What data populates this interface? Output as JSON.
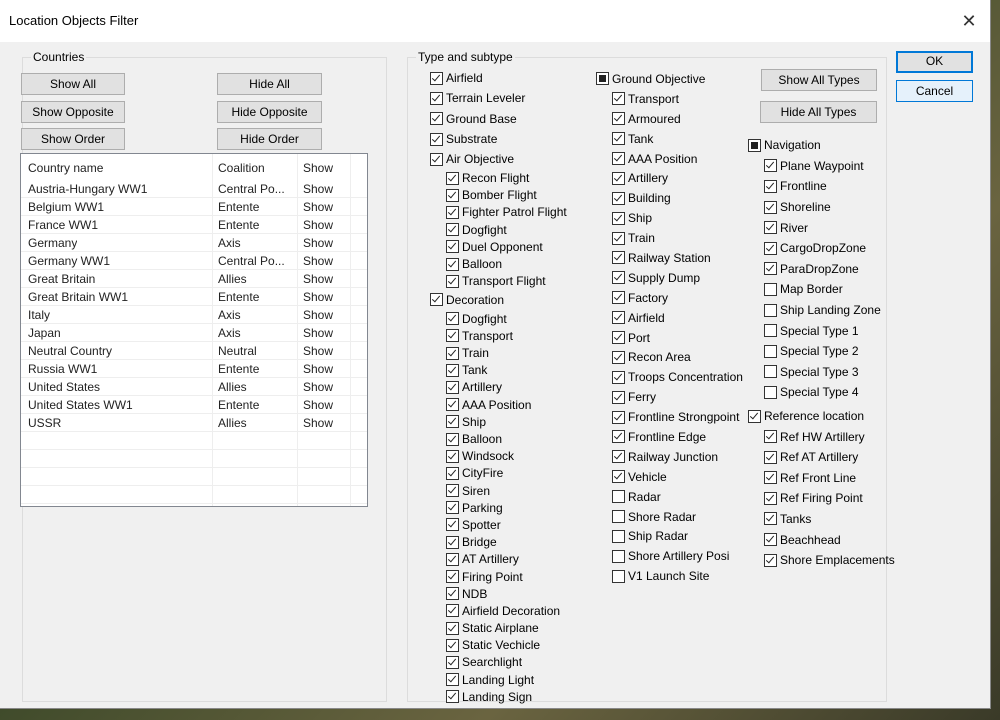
{
  "window": {
    "title": "Location Objects Filter",
    "close_icon": "close-icon"
  },
  "countries": {
    "label": "Countries",
    "buttons": {
      "show_all": "Show All",
      "hide_all": "Hide All",
      "show_opposite": "Show Opposite",
      "hide_opposite": "Hide Opposite",
      "show_order": "Show Order",
      "hide_order": "Hide Order"
    },
    "columns": [
      "Country name",
      "Coalition",
      "Show"
    ],
    "rows": [
      [
        "Austria-Hungary WW1",
        "Central Po...",
        "Show"
      ],
      [
        "Belgium WW1",
        "Entente",
        "Show"
      ],
      [
        "France WW1",
        "Entente",
        "Show"
      ],
      [
        "Germany",
        "Axis",
        "Show"
      ],
      [
        "Germany WW1",
        "Central Po...",
        "Show"
      ],
      [
        "Great Britain",
        "Allies",
        "Show"
      ],
      [
        "Great Britain WW1",
        "Entente",
        "Show"
      ],
      [
        "Italy",
        "Axis",
        "Show"
      ],
      [
        "Japan",
        "Axis",
        "Show"
      ],
      [
        "Neutral Country",
        "Neutral",
        "Show"
      ],
      [
        "Russia WW1",
        "Entente",
        "Show"
      ],
      [
        "United States",
        "Allies",
        "Show"
      ],
      [
        "United States WW1",
        "Entente",
        "Show"
      ],
      [
        "USSR",
        "Allies",
        "Show"
      ]
    ]
  },
  "types": {
    "label": "Type and subtype",
    "show_all_types": "Show All Types",
    "hide_all_types": "Hide All Types",
    "columns": [
      [
        {
          "label": "Airfield",
          "state": "checked",
          "level": 0
        },
        {
          "label": "Terrain Leveler",
          "state": "checked",
          "level": 0
        },
        {
          "label": "Ground Base",
          "state": "checked",
          "level": 0
        },
        {
          "label": "Substrate",
          "state": "checked",
          "level": 0
        },
        {
          "label": "Air Objective",
          "state": "checked",
          "level": 0
        },
        {
          "label": "Recon Flight",
          "state": "checked",
          "level": 1
        },
        {
          "label": "Bomber Flight",
          "state": "checked",
          "level": 1
        },
        {
          "label": "Fighter Patrol Flight",
          "state": "checked",
          "level": 1
        },
        {
          "label": "Dogfight",
          "state": "checked",
          "level": 1
        },
        {
          "label": "Duel Opponent",
          "state": "checked",
          "level": 1
        },
        {
          "label": "Balloon",
          "state": "checked",
          "level": 1
        },
        {
          "label": "Transport Flight",
          "state": "checked",
          "level": 1
        },
        {
          "label": "Decoration",
          "state": "checked",
          "level": 0
        },
        {
          "label": "Dogfight",
          "state": "checked",
          "level": 1
        },
        {
          "label": "Transport",
          "state": "checked",
          "level": 1
        },
        {
          "label": "Train",
          "state": "checked",
          "level": 1
        },
        {
          "label": "Tank",
          "state": "checked",
          "level": 1
        },
        {
          "label": "Artillery",
          "state": "checked",
          "level": 1
        },
        {
          "label": "AAA Position",
          "state": "checked",
          "level": 1
        },
        {
          "label": "Ship",
          "state": "checked",
          "level": 1
        },
        {
          "label": "Balloon",
          "state": "checked",
          "level": 1
        },
        {
          "label": "Windsock",
          "state": "checked",
          "level": 1
        },
        {
          "label": "CityFire",
          "state": "checked",
          "level": 1
        },
        {
          "label": "Siren",
          "state": "checked",
          "level": 1
        },
        {
          "label": "Parking",
          "state": "checked",
          "level": 1
        },
        {
          "label": "Spotter",
          "state": "checked",
          "level": 1
        },
        {
          "label": "Bridge",
          "state": "checked",
          "level": 1
        },
        {
          "label": "AT Artillery",
          "state": "checked",
          "level": 1
        },
        {
          "label": "Firing Point",
          "state": "checked",
          "level": 1
        },
        {
          "label": "NDB",
          "state": "checked",
          "level": 1
        },
        {
          "label": "Airfield Decoration",
          "state": "checked",
          "level": 1
        },
        {
          "label": "Static Airplane",
          "state": "checked",
          "level": 1
        },
        {
          "label": "Static Vechicle",
          "state": "checked",
          "level": 1
        },
        {
          "label": "Searchlight",
          "state": "checked",
          "level": 1
        },
        {
          "label": "Landing Light",
          "state": "checked",
          "level": 1
        },
        {
          "label": "Landing Sign",
          "state": "checked",
          "level": 1
        }
      ],
      [
        {
          "label": "Ground Objective",
          "state": "indeterminate",
          "level": 0
        },
        {
          "label": "Transport",
          "state": "checked",
          "level": 1
        },
        {
          "label": "Armoured",
          "state": "checked",
          "level": 1
        },
        {
          "label": "Tank",
          "state": "checked",
          "level": 1
        },
        {
          "label": "AAA Position",
          "state": "checked",
          "level": 1
        },
        {
          "label": "Artillery",
          "state": "checked",
          "level": 1
        },
        {
          "label": "Building",
          "state": "checked",
          "level": 1
        },
        {
          "label": "Ship",
          "state": "checked",
          "level": 1
        },
        {
          "label": "Train",
          "state": "checked",
          "level": 1
        },
        {
          "label": "Railway Station",
          "state": "checked",
          "level": 1
        },
        {
          "label": "Supply Dump",
          "state": "checked",
          "level": 1
        },
        {
          "label": "Factory",
          "state": "checked",
          "level": 1
        },
        {
          "label": "Airfield",
          "state": "checked",
          "level": 1
        },
        {
          "label": "Port",
          "state": "checked",
          "level": 1
        },
        {
          "label": "Recon Area",
          "state": "checked",
          "level": 1
        },
        {
          "label": "Troops Concentration",
          "state": "checked",
          "level": 1
        },
        {
          "label": "Ferry",
          "state": "checked",
          "level": 1
        },
        {
          "label": "Frontline Strongpoint",
          "state": "checked",
          "level": 1
        },
        {
          "label": "Frontline Edge",
          "state": "checked",
          "level": 1
        },
        {
          "label": "Railway Junction",
          "state": "checked",
          "level": 1
        },
        {
          "label": "Vehicle",
          "state": "checked",
          "level": 1
        },
        {
          "label": "Radar",
          "state": "unchecked",
          "level": 1
        },
        {
          "label": "Shore Radar",
          "state": "unchecked",
          "level": 1
        },
        {
          "label": "Ship Radar",
          "state": "unchecked",
          "level": 1
        },
        {
          "label": "Shore Artillery Posi",
          "state": "unchecked",
          "level": 1
        },
        {
          "label": "V1 Launch Site",
          "state": "unchecked",
          "level": 1
        }
      ],
      [
        {
          "label": "Navigation",
          "state": "indeterminate",
          "level": 0
        },
        {
          "label": "Plane Waypoint",
          "state": "checked",
          "level": 1
        },
        {
          "label": "Frontline",
          "state": "checked",
          "level": 1
        },
        {
          "label": "Shoreline",
          "state": "checked",
          "level": 1
        },
        {
          "label": "River",
          "state": "checked",
          "level": 1
        },
        {
          "label": "CargoDropZone",
          "state": "checked",
          "level": 1
        },
        {
          "label": "ParaDropZone",
          "state": "checked",
          "level": 1
        },
        {
          "label": "Map Border",
          "state": "unchecked",
          "level": 1
        },
        {
          "label": "Ship Landing Zone",
          "state": "unchecked",
          "level": 1
        },
        {
          "label": "Special Type 1",
          "state": "unchecked",
          "level": 1
        },
        {
          "label": "Special Type 2",
          "state": "unchecked",
          "level": 1
        },
        {
          "label": "Special Type 3",
          "state": "unchecked",
          "level": 1
        },
        {
          "label": "Special Type 4",
          "state": "unchecked",
          "level": 1
        },
        {
          "label": "Reference location",
          "state": "checked",
          "level": 0
        },
        {
          "label": "Ref HW Artillery",
          "state": "checked",
          "level": 1
        },
        {
          "label": "Ref AT Artillery",
          "state": "checked",
          "level": 1
        },
        {
          "label": "Ref Front Line",
          "state": "checked",
          "level": 1
        },
        {
          "label": "Ref Firing Point",
          "state": "checked",
          "level": 1
        },
        {
          "label": "Tanks",
          "state": "checked",
          "level": 1
        },
        {
          "label": "Beachhead",
          "state": "checked",
          "level": 1
        },
        {
          "label": "Shore Emplacements",
          "state": "checked",
          "level": 1
        }
      ]
    ]
  },
  "dialog_buttons": {
    "ok": "OK",
    "cancel": "Cancel"
  },
  "colors": {
    "accent": "#0078d7",
    "dialog_bg": "#f0f0f0"
  }
}
